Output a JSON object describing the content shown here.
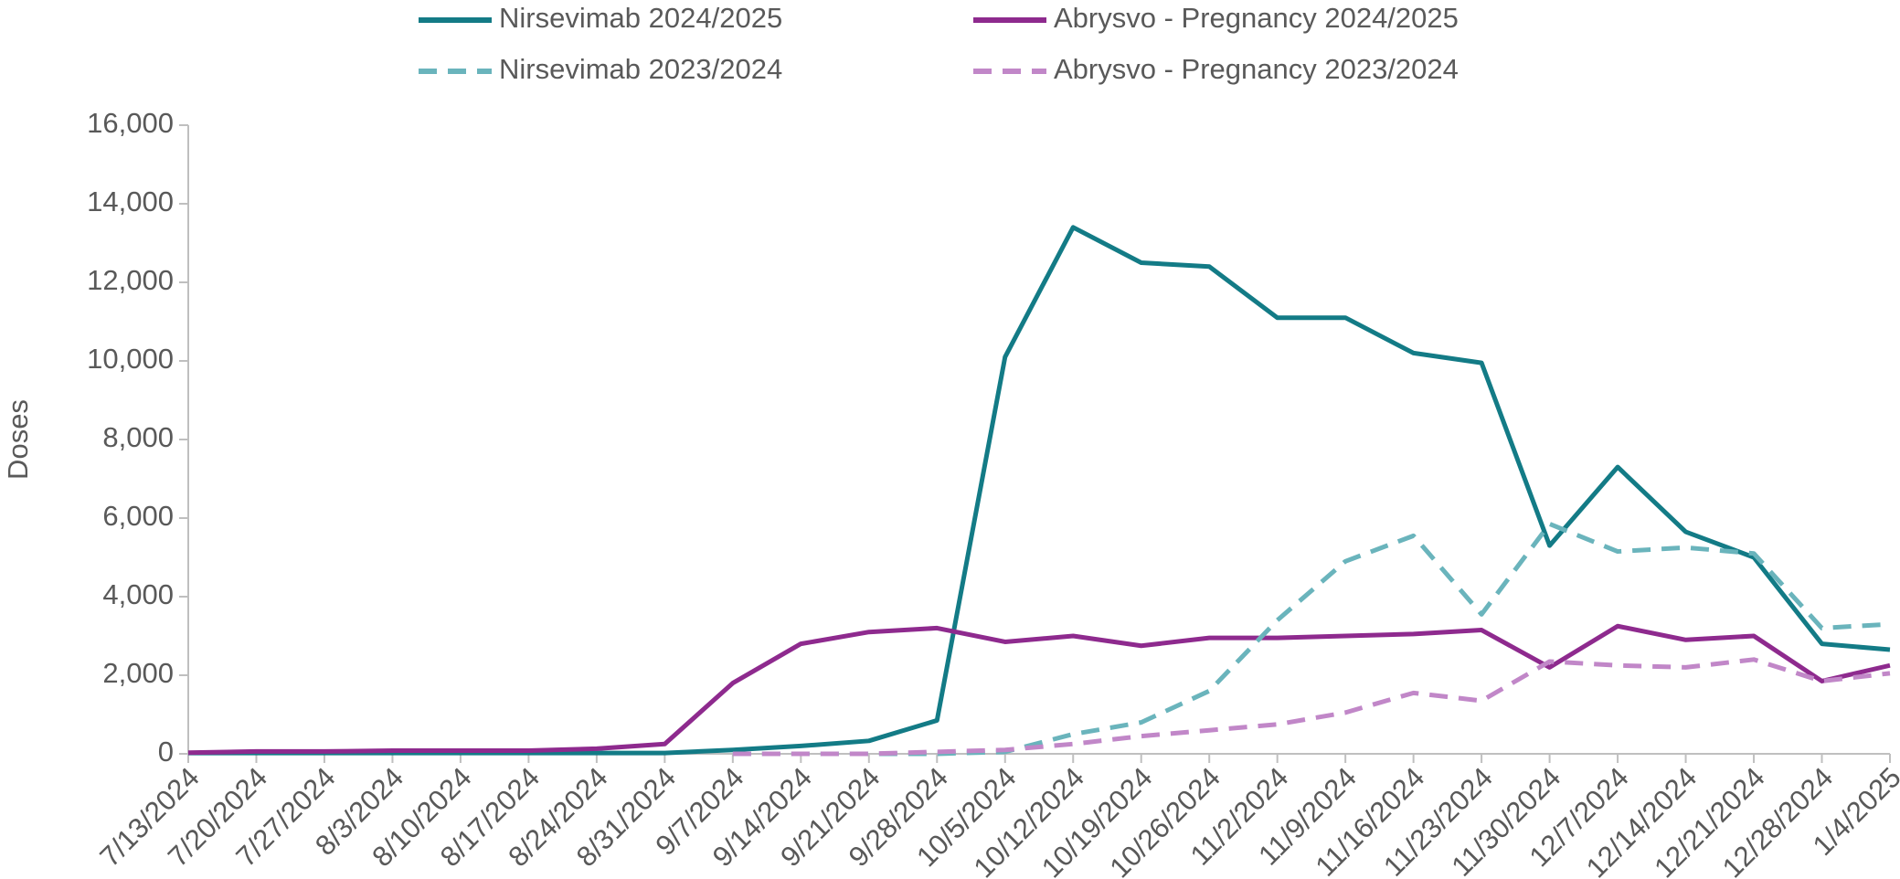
{
  "chart_data": {
    "type": "line",
    "y_label": "Doses",
    "categories": [
      "7/13/2024",
      "7/20/2024",
      "7/27/2024",
      "8/3/2024",
      "8/10/2024",
      "8/17/2024",
      "8/24/2024",
      "8/31/2024",
      "9/7/2024",
      "9/14/2024",
      "9/21/2024",
      "9/28/2024",
      "10/5/2024",
      "10/12/2024",
      "10/19/2024",
      "10/26/2024",
      "11/2/2024",
      "11/9/2024",
      "11/16/2024",
      "11/23/2024",
      "11/30/2024",
      "12/7/2024",
      "12/14/2024",
      "12/21/2024",
      "12/28/2024",
      "1/4/2025"
    ],
    "series": [
      {
        "name": "Nirsevimab 2024/2025",
        "color": "#137b86",
        "dash": false,
        "values": [
          20,
          20,
          20,
          20,
          20,
          20,
          20,
          20,
          100,
          200,
          330,
          850,
          10100,
          13400,
          12500,
          12400,
          11100,
          11100,
          10200,
          9950,
          5300,
          7300,
          5650,
          5000,
          2800,
          2650
        ]
      },
      {
        "name": "Abrysvo - Pregnancy 2024/2025",
        "color": "#8e2a8e",
        "dash": false,
        "values": [
          30,
          60,
          60,
          80,
          80,
          80,
          130,
          250,
          1800,
          2800,
          3100,
          3200,
          2850,
          3000,
          2750,
          2950,
          2950,
          3000,
          3050,
          3150,
          2200,
          3250,
          2900,
          3000,
          1850,
          2250
        ]
      },
      {
        "name": "Nirsevimab 2023/2024",
        "color": "#6ab4bc",
        "dash": true,
        "values": [
          null,
          null,
          null,
          null,
          null,
          null,
          null,
          null,
          0,
          0,
          0,
          0,
          50,
          500,
          800,
          1600,
          3400,
          4900,
          5550,
          3550,
          5850,
          5150,
          5250,
          5100,
          3200,
          3300
        ]
      },
      {
        "name": "Abrysvo - Pregnancy 2023/2024",
        "color": "#c187c8",
        "dash": true,
        "values": [
          null,
          null,
          null,
          null,
          null,
          null,
          null,
          null,
          0,
          0,
          0,
          50,
          100,
          250,
          450,
          600,
          750,
          1050,
          1550,
          1350,
          2350,
          2250,
          2200,
          2400,
          1850,
          2050
        ]
      }
    ],
    "ylim": [
      0,
      16000
    ],
    "yticks": [
      0,
      {
        "value": 2000,
        "label": "2,000"
      },
      {
        "value": 4000,
        "label": "4,000"
      },
      {
        "value": 6000,
        "label": "6,000"
      },
      {
        "value": 8000,
        "label": "8,000"
      },
      {
        "value": 10000,
        "label": "10,000"
      },
      {
        "value": 12000,
        "label": "12,000"
      },
      {
        "value": 14000,
        "label": "14,000"
      },
      {
        "value": 16000,
        "label": "16,000"
      }
    ],
    "grid": false
  }
}
